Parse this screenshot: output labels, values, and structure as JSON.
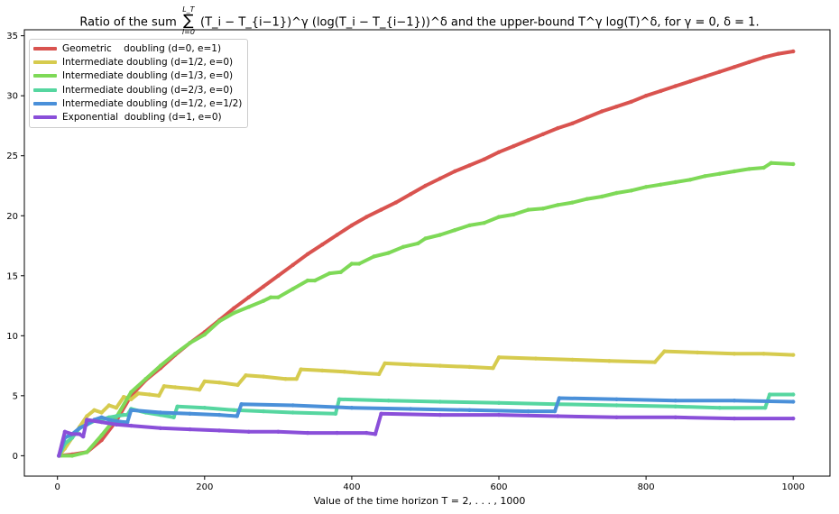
{
  "title": {
    "prefix": "Ratio of the sum",
    "sum_upper": "L_T",
    "sum_lower": "i=0",
    "sum_symbol": "∑",
    "expression": "(T_i − T_{i−1})^γ (log(T_i − T_{i−1}))^δ and the upper-bound T^γ log(T)^δ, for γ = 0, δ = 1."
  },
  "chart_data": {
    "type": "line",
    "title": "Ratio of the sum Σ_{i=0}^{L_T} (T_i − T_{i−1})^γ (log(T_i − T_{i−1}))^δ and the upper-bound T^γ log(T)^δ, for γ = 0, δ = 1.",
    "xlabel": "Value of the time horizon T = 2, . . . , 1000",
    "ylabel": "",
    "xlim": [
      -45,
      1050
    ],
    "ylim": [
      -1.7,
      35.5
    ],
    "xticks": [
      0,
      200,
      400,
      600,
      800,
      1000
    ],
    "yticks": [
      0,
      5,
      10,
      15,
      20,
      25,
      30,
      35
    ],
    "grid": false,
    "legend_position": "upper-left",
    "series": [
      {
        "name": "Geometric    doubling (d=0, e=1)",
        "color": "#d9534f",
        "points": [
          [
            2,
            0
          ],
          [
            20,
            0.1
          ],
          [
            40,
            0.3
          ],
          [
            60,
            1.3
          ],
          [
            80,
            2.9
          ],
          [
            100,
            5.0
          ],
          [
            120,
            6.3
          ],
          [
            140,
            7.3
          ],
          [
            160,
            8.4
          ],
          [
            180,
            9.4
          ],
          [
            200,
            10.3
          ],
          [
            220,
            11.3
          ],
          [
            240,
            12.3
          ],
          [
            260,
            13.2
          ],
          [
            280,
            14.1
          ],
          [
            300,
            15.0
          ],
          [
            320,
            15.9
          ],
          [
            340,
            16.8
          ],
          [
            360,
            17.6
          ],
          [
            380,
            18.4
          ],
          [
            400,
            19.2
          ],
          [
            420,
            19.9
          ],
          [
            440,
            20.5
          ],
          [
            460,
            21.1
          ],
          [
            480,
            21.8
          ],
          [
            500,
            22.5
          ],
          [
            520,
            23.1
          ],
          [
            540,
            23.7
          ],
          [
            560,
            24.2
          ],
          [
            580,
            24.7
          ],
          [
            600,
            25.3
          ],
          [
            620,
            25.8
          ],
          [
            640,
            26.3
          ],
          [
            660,
            26.8
          ],
          [
            680,
            27.3
          ],
          [
            700,
            27.7
          ],
          [
            720,
            28.2
          ],
          [
            740,
            28.7
          ],
          [
            760,
            29.1
          ],
          [
            780,
            29.5
          ],
          [
            800,
            30.0
          ],
          [
            820,
            30.4
          ],
          [
            840,
            30.8
          ],
          [
            860,
            31.2
          ],
          [
            880,
            31.6
          ],
          [
            900,
            32.0
          ],
          [
            920,
            32.4
          ],
          [
            940,
            32.8
          ],
          [
            960,
            33.2
          ],
          [
            980,
            33.5
          ],
          [
            1000,
            33.7
          ]
        ]
      },
      {
        "name": "Intermediate doubling (d=1/2, e=0)",
        "color": "#d6cb4e",
        "points": [
          [
            2,
            0
          ],
          [
            10,
            0.6
          ],
          [
            20,
            1.5
          ],
          [
            30,
            2.4
          ],
          [
            40,
            3.3
          ],
          [
            50,
            3.8
          ],
          [
            60,
            3.6
          ],
          [
            70,
            4.2
          ],
          [
            80,
            4.0
          ],
          [
            90,
            4.9
          ],
          [
            100,
            4.7
          ],
          [
            110,
            5.2
          ],
          [
            125,
            5.1
          ],
          [
            138,
            5.0
          ],
          [
            145,
            5.8
          ],
          [
            160,
            5.7
          ],
          [
            180,
            5.6
          ],
          [
            193,
            5.5
          ],
          [
            200,
            6.2
          ],
          [
            220,
            6.1
          ],
          [
            245,
            5.9
          ],
          [
            256,
            6.7
          ],
          [
            280,
            6.6
          ],
          [
            310,
            6.4
          ],
          [
            325,
            6.4
          ],
          [
            331,
            7.2
          ],
          [
            360,
            7.1
          ],
          [
            390,
            7.0
          ],
          [
            410,
            6.9
          ],
          [
            437,
            6.8
          ],
          [
            445,
            7.7
          ],
          [
            480,
            7.6
          ],
          [
            520,
            7.5
          ],
          [
            560,
            7.4
          ],
          [
            592,
            7.3
          ],
          [
            600,
            8.2
          ],
          [
            650,
            8.1
          ],
          [
            700,
            8.0
          ],
          [
            750,
            7.9
          ],
          [
            812,
            7.8
          ],
          [
            825,
            8.7
          ],
          [
            870,
            8.6
          ],
          [
            920,
            8.5
          ],
          [
            960,
            8.5
          ],
          [
            1000,
            8.4
          ]
        ]
      },
      {
        "name": "Intermediate doubling (d=1/3, e=0)",
        "color": "#7ed957",
        "points": [
          [
            2,
            0
          ],
          [
            20,
            0
          ],
          [
            40,
            0.3
          ],
          [
            60,
            1.7
          ],
          [
            80,
            3.2
          ],
          [
            100,
            5.3
          ],
          [
            120,
            6.4
          ],
          [
            140,
            7.5
          ],
          [
            160,
            8.5
          ],
          [
            180,
            9.4
          ],
          [
            200,
            10.1
          ],
          [
            220,
            11.2
          ],
          [
            240,
            11.9
          ],
          [
            260,
            12.4
          ],
          [
            280,
            12.9
          ],
          [
            290,
            13.2
          ],
          [
            300,
            13.2
          ],
          [
            320,
            13.9
          ],
          [
            340,
            14.6
          ],
          [
            350,
            14.6
          ],
          [
            370,
            15.2
          ],
          [
            385,
            15.3
          ],
          [
            400,
            16.0
          ],
          [
            410,
            16.0
          ],
          [
            430,
            16.6
          ],
          [
            450,
            16.9
          ],
          [
            470,
            17.4
          ],
          [
            490,
            17.7
          ],
          [
            500,
            18.1
          ],
          [
            520,
            18.4
          ],
          [
            540,
            18.8
          ],
          [
            560,
            19.2
          ],
          [
            580,
            19.4
          ],
          [
            600,
            19.9
          ],
          [
            620,
            20.1
          ],
          [
            640,
            20.5
          ],
          [
            660,
            20.6
          ],
          [
            680,
            20.9
          ],
          [
            700,
            21.1
          ],
          [
            720,
            21.4
          ],
          [
            740,
            21.6
          ],
          [
            760,
            21.9
          ],
          [
            780,
            22.1
          ],
          [
            800,
            22.4
          ],
          [
            820,
            22.6
          ],
          [
            840,
            22.8
          ],
          [
            860,
            23.0
          ],
          [
            880,
            23.3
          ],
          [
            900,
            23.5
          ],
          [
            920,
            23.7
          ],
          [
            940,
            23.9
          ],
          [
            960,
            24.0
          ],
          [
            970,
            24.4
          ],
          [
            1000,
            24.3
          ]
        ]
      },
      {
        "name": "Intermediate doubling (d=2/3, e=0)",
        "color": "#56d6a0",
        "points": [
          [
            2,
            0
          ],
          [
            10,
            1.0
          ],
          [
            20,
            1.5
          ],
          [
            30,
            2.3
          ],
          [
            40,
            2.6
          ],
          [
            50,
            2.9
          ],
          [
            60,
            3.0
          ],
          [
            70,
            3.2
          ],
          [
            80,
            3.3
          ],
          [
            90,
            3.4
          ],
          [
            95,
            3.4
          ],
          [
            100,
            3.9
          ],
          [
            120,
            3.6
          ],
          [
            140,
            3.4
          ],
          [
            158,
            3.2
          ],
          [
            163,
            4.1
          ],
          [
            200,
            4.0
          ],
          [
            240,
            3.8
          ],
          [
            280,
            3.7
          ],
          [
            320,
            3.6
          ],
          [
            378,
            3.5
          ],
          [
            383,
            4.7
          ],
          [
            450,
            4.6
          ],
          [
            520,
            4.5
          ],
          [
            600,
            4.4
          ],
          [
            680,
            4.3
          ],
          [
            760,
            4.2
          ],
          [
            840,
            4.1
          ],
          [
            900,
            4.0
          ],
          [
            962,
            4.0
          ],
          [
            968,
            5.1
          ],
          [
            1000,
            5.1
          ]
        ]
      },
      {
        "name": "Intermediate doubling (d=1/2, e=1/2)",
        "color": "#4a90d9",
        "points": [
          [
            2,
            0
          ],
          [
            10,
            1.5
          ],
          [
            20,
            1.8
          ],
          [
            30,
            2.3
          ],
          [
            40,
            2.6
          ],
          [
            50,
            3.0
          ],
          [
            60,
            3.2
          ],
          [
            70,
            3.0
          ],
          [
            80,
            2.9
          ],
          [
            90,
            2.8
          ],
          [
            95,
            2.8
          ],
          [
            100,
            3.8
          ],
          [
            140,
            3.6
          ],
          [
            180,
            3.5
          ],
          [
            220,
            3.4
          ],
          [
            244,
            3.3
          ],
          [
            250,
            4.3
          ],
          [
            320,
            4.2
          ],
          [
            400,
            4.0
          ],
          [
            480,
            3.9
          ],
          [
            560,
            3.8
          ],
          [
            640,
            3.7
          ],
          [
            676,
            3.7
          ],
          [
            682,
            4.8
          ],
          [
            760,
            4.7
          ],
          [
            840,
            4.6
          ],
          [
            920,
            4.6
          ],
          [
            1000,
            4.5
          ]
        ]
      },
      {
        "name": "Exponential  doubling (d=1, e=0)",
        "color": "#8a4fd9",
        "points": [
          [
            2,
            0
          ],
          [
            10,
            2.0
          ],
          [
            20,
            1.8
          ],
          [
            30,
            1.8
          ],
          [
            35,
            1.6
          ],
          [
            40,
            3.0
          ],
          [
            60,
            2.8
          ],
          [
            80,
            2.6
          ],
          [
            100,
            2.5
          ],
          [
            140,
            2.3
          ],
          [
            180,
            2.2
          ],
          [
            220,
            2.1
          ],
          [
            260,
            2.0
          ],
          [
            300,
            2.0
          ],
          [
            340,
            1.9
          ],
          [
            380,
            1.9
          ],
          [
            420,
            1.9
          ],
          [
            432,
            1.8
          ],
          [
            440,
            3.5
          ],
          [
            520,
            3.4
          ],
          [
            600,
            3.4
          ],
          [
            680,
            3.3
          ],
          [
            760,
            3.2
          ],
          [
            840,
            3.2
          ],
          [
            920,
            3.1
          ],
          [
            1000,
            3.1
          ]
        ]
      }
    ]
  },
  "xlabel_text": "Value of the time horizon T = 2, . . . , 1000"
}
